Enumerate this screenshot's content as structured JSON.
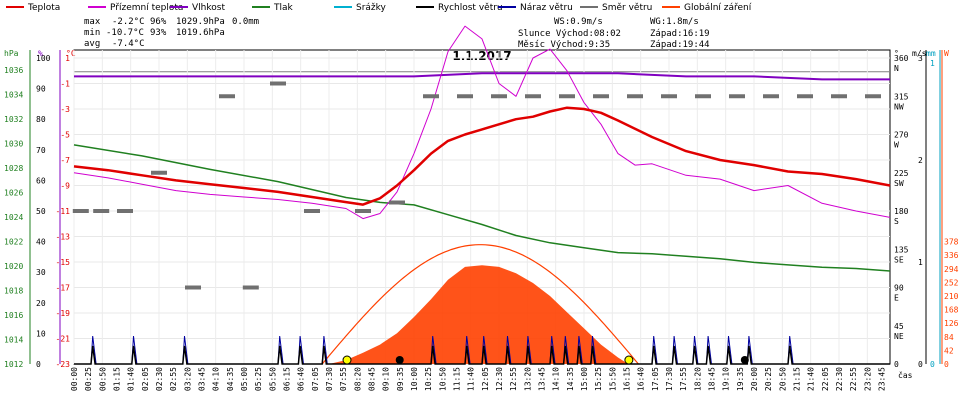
{
  "chart_data": {
    "type": "line",
    "title": "1.1.2017",
    "legend": [
      {
        "name": "Teplota",
        "color": "#e00000"
      },
      {
        "name": "Přízemní teplota",
        "color": "#d000d0"
      },
      {
        "name": "Vlhkost",
        "color": "#8000c0"
      },
      {
        "name": "Tlak",
        "color": "#208020"
      },
      {
        "name": "Srážky",
        "color": "#00b0d0"
      },
      {
        "name": "Rychlost větru",
        "color": "#000000"
      },
      {
        "name": "Náraz větru",
        "color": "#0000a0"
      },
      {
        "name": "Směr větru",
        "color": "#707070"
      },
      {
        "name": "Globální záření",
        "color": "#ff4000"
      }
    ],
    "stats": {
      "max_label": "max",
      "max_temp": "-2.2°C",
      "max_hum": "96%",
      "max_press": "1029.9hPa",
      "max_rain": "0.0mm",
      "min_label": "min",
      "min_temp": "-10.7°C",
      "min_hum": "93%",
      "min_press": "1019.6hPa",
      "avg_label": "avg",
      "avg_temp": "-7.4°C",
      "ws": "WS:0.9m/s",
      "wg": "WG:1.8m/s",
      "sun": "Slunce Východ:08:02",
      "sun_set": "Západ:16:19",
      "moon": "Měsíc  Východ:9:35",
      "moon_set": "Západ:19:44"
    },
    "axis_units": {
      "hpa": "hPa",
      "pct": "%",
      "degc": "°C",
      "dir": "°",
      "ms": "m/s",
      "mm": "mm",
      "w": "W",
      "time": "čas"
    },
    "x_ticks": [
      "00:00",
      "00:25",
      "00:50",
      "01:15",
      "01:40",
      "02:05",
      "02:30",
      "02:55",
      "03:20",
      "03:45",
      "04:10",
      "04:35",
      "05:00",
      "05:25",
      "05:50",
      "06:15",
      "06:40",
      "07:05",
      "07:30",
      "07:55",
      "08:20",
      "08:45",
      "09:10",
      "09:35",
      "10:00",
      "10:25",
      "10:50",
      "11:15",
      "11:40",
      "12:05",
      "12:30",
      "12:55",
      "13:20",
      "13:45",
      "14:10",
      "14:35",
      "15:00",
      "15:25",
      "15:50",
      "16:15",
      "16:40",
      "17:05",
      "17:30",
      "17:55",
      "18:20",
      "18:45",
      "19:10",
      "19:35",
      "20:00",
      "20:25",
      "20:50",
      "21:15",
      "21:40",
      "22:05",
      "22:30",
      "22:55",
      "23:20",
      "23:45"
    ],
    "axes": {
      "pressure": {
        "ticks": [
          "1036",
          "1034",
          "1032",
          "1030",
          "1028",
          "1026",
          "1024",
          "1022",
          "1020",
          "1018",
          "1016",
          "1014",
          "1012"
        ],
        "range": [
          1012,
          1037
        ]
      },
      "humidity": {
        "ticks": [
          "100",
          "90",
          "80",
          "70",
          "60",
          "50",
          "40",
          "30",
          "20",
          "10",
          "0"
        ],
        "range": [
          0,
          100
        ]
      },
      "temperature": {
        "ticks": [
          "1",
          "-1",
          "-3",
          "-5",
          "-7",
          "-9",
          "-11",
          "-13",
          "-15",
          "-17",
          "-19",
          "-21",
          "-23"
        ],
        "range": [
          -23,
          1
        ]
      },
      "direction": {
        "ticks": [
          "360",
          "315",
          "270",
          "225",
          "180",
          "135",
          "90",
          "45",
          "0"
        ],
        "labels": [
          "N",
          "NW",
          "W",
          "SW",
          "S",
          "SE",
          "E",
          "NE",
          ""
        ],
        "range": [
          0,
          360
        ]
      },
      "wind": {
        "ticks": [
          "3",
          "2",
          "1",
          "0"
        ],
        "range": [
          0,
          3
        ]
      },
      "rain": {
        "ticks": [
          "1",
          "0"
        ],
        "range": [
          0,
          1
        ]
      },
      "radiation": {
        "ticks": [
          "378",
          "336",
          "294",
          "252",
          "210",
          "168",
          "126",
          "84",
          "42",
          "0"
        ],
        "range": [
          0,
          378
        ]
      }
    },
    "series": [
      {
        "name": "Teplota",
        "unit": "°C",
        "x": [
          0,
          1,
          2,
          3,
          4,
          5,
          6,
          7,
          8,
          8.5,
          9,
          9.5,
          10,
          10.5,
          11,
          11.5,
          12,
          12.5,
          13,
          13.5,
          14,
          14.5,
          15,
          15.5,
          16,
          17,
          18,
          19,
          20,
          21,
          22,
          23,
          24
        ],
        "values": [
          -7.5,
          -7.8,
          -8.2,
          -8.6,
          -8.9,
          -9.2,
          -9.5,
          -9.9,
          -10.3,
          -10.5,
          -10,
          -9,
          -7.8,
          -6.5,
          -5.5,
          -5,
          -4.6,
          -4.2,
          -3.8,
          -3.6,
          -3.2,
          -2.9,
          -3,
          -3.3,
          -3.9,
          -5.2,
          -6.3,
          -7,
          -7.4,
          -7.9,
          -8.1,
          -8.5,
          -9
        ]
      },
      {
        "name": "Přízemní teplota",
        "unit": "°C",
        "x": [
          0,
          1,
          2,
          3,
          4,
          5,
          6,
          7,
          8,
          8.5,
          9,
          9.5,
          10,
          10.5,
          11,
          11.5,
          12,
          12.5,
          13,
          13.5,
          14,
          14.5,
          15,
          15.5,
          16,
          16.5,
          17,
          18,
          19,
          20,
          21,
          22,
          23,
          24
        ],
        "values": [
          -8,
          -8.4,
          -8.9,
          -9.4,
          -9.7,
          -9.9,
          -10.1,
          -10.4,
          -10.8,
          -11.6,
          -11.2,
          -9.5,
          -6.5,
          -3,
          1.5,
          3.5,
          2.5,
          -1,
          -2,
          1,
          1.7,
          0,
          -2.5,
          -4.2,
          -6.5,
          -7.4,
          -7.3,
          -8.2,
          -8.5,
          -9.4,
          -9,
          -10.4,
          -11,
          -11.5
        ]
      },
      {
        "name": "Vlhkost",
        "unit": "%",
        "x": [
          0,
          2,
          4,
          6,
          8,
          10,
          12,
          14,
          16,
          18,
          20,
          22,
          24
        ],
        "values": [
          94,
          94,
          94,
          94,
          94,
          94,
          95,
          95,
          95,
          94,
          94,
          93,
          93
        ]
      },
      {
        "name": "Tlak",
        "unit": "hPa",
        "x": [
          0,
          2,
          4,
          6,
          8,
          9,
          10,
          11,
          12,
          13,
          14,
          15,
          16,
          17,
          18,
          19,
          20,
          21,
          22,
          23,
          24
        ],
        "values": [
          1029.9,
          1029,
          1027.9,
          1026.9,
          1025.6,
          1025.2,
          1025,
          1024.2,
          1023.4,
          1022.5,
          1021.9,
          1021.5,
          1021.1,
          1021,
          1020.8,
          1020.6,
          1020.3,
          1020.1,
          1019.9,
          1019.8,
          1019.6
        ]
      },
      {
        "name": "Globální záření",
        "unit": "W",
        "x": [
          7.5,
          8,
          8.5,
          9,
          9.5,
          10,
          10.5,
          11,
          11.5,
          12,
          12.5,
          13,
          13.5,
          14,
          14.5,
          15,
          15.5,
          16,
          16.3
        ],
        "values": [
          0,
          12,
          35,
          60,
          95,
          145,
          200,
          260,
          300,
          305,
          300,
          280,
          250,
          210,
          160,
          110,
          60,
          20,
          0
        ]
      },
      {
        "name": "Směr větru",
        "unit": "°",
        "x": [
          0.2,
          0.8,
          1.5,
          2.5,
          3.5,
          4.5,
          5.2,
          6,
          7,
          8.5,
          9.5,
          10.5,
          11.5,
          12.5,
          13.5,
          14.5,
          15.5,
          16.5,
          17.5,
          18.5,
          19.5,
          20.5,
          21.5,
          22.5,
          23.5
        ],
        "values": [
          180,
          180,
          180,
          225,
          90,
          315,
          90,
          330,
          180,
          180,
          190,
          315,
          315,
          315,
          315,
          315,
          315,
          315,
          315,
          315,
          315,
          315,
          315,
          315,
          315
        ]
      }
    ]
  }
}
